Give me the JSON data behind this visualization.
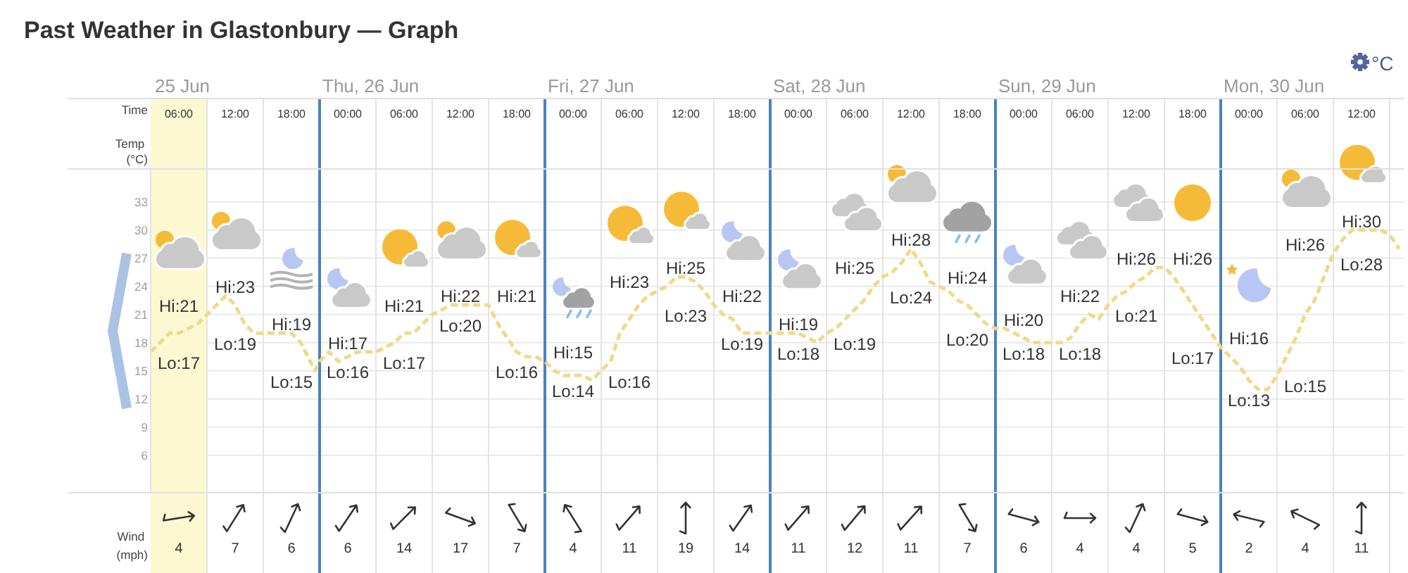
{
  "chart_data": [
    {
      "type": "line",
      "title": "Past Weather in Glastonbury — Graph",
      "xlabel": "Time",
      "ylabel": "Temp (°C)",
      "x": [
        "--06-25T03:00",
        "--06-25T04:00",
        "--06-25T05:00",
        "--06-25T06:00",
        "--06-25T07:00",
        "--06-25T08:00",
        "--06-25T09:00",
        "--06-25T10:00",
        "--06-25T11:00",
        "--06-25T12:00",
        "--06-25T13:00",
        "--06-25T14:00",
        "--06-25T15:00",
        "--06-25T16:00",
        "--06-25T17:00",
        "--06-25T18:00",
        "--06-25T19:00",
        "--06-25T20:00",
        "--06-25T20:30",
        "--06-25T21:00",
        "--06-25T22:00",
        "--06-25T23:00",
        "--06-26T00:00",
        "--06-26T01:00",
        "--06-26T02:00",
        "--06-26T03:00",
        "--06-26T04:00",
        "--06-26T05:00",
        "--06-26T06:00",
        "--06-26T07:00",
        "--06-26T08:00",
        "--06-26T09:00",
        "--06-26T10:00",
        "--06-26T11:00",
        "--06-26T12:00",
        "--06-26T13:00",
        "--06-26T14:00",
        "--06-26T15:00",
        "--06-26T16:00",
        "--06-26T17:00",
        "--06-26T18:00",
        "--06-26T19:00",
        "--06-26T20:00",
        "--06-26T21:00",
        "--06-26T22:00",
        "--06-26T23:00",
        "--06-27T00:00",
        "--06-27T01:00",
        "--06-27T02:00",
        "--06-27T03:00",
        "--06-27T04:00",
        "--06-27T05:00",
        "--06-27T06:00",
        "--06-27T07:00",
        "--06-27T08:00",
        "--06-27T09:00",
        "--06-27T10:00",
        "--06-27T11:00",
        "--06-27T12:00",
        "--06-27T13:00",
        "--06-27T14:00",
        "--06-27T15:00",
        "--06-27T16:00",
        "--06-27T17:00",
        "--06-27T18:00",
        "--06-27T19:00",
        "--06-27T20:00",
        "--06-27T21:00",
        "--06-27T22:00",
        "--06-27T23:00",
        "--06-28T00:00",
        "--06-28T01:00",
        "--06-28T02:00",
        "--06-28T03:00",
        "--06-28T04:00",
        "--06-28T05:00",
        "--06-28T06:00",
        "--06-28T07:00",
        "--06-28T08:00",
        "--06-28T09:00",
        "--06-28T10:00",
        "--06-28T11:00",
        "--06-28T12:00",
        "--06-28T13:00",
        "--06-28T14:00",
        "--06-28T15:00",
        "--06-28T16:00",
        "--06-28T17:00",
        "--06-28T18:00",
        "--06-28T19:00",
        "--06-28T20:00",
        "--06-28T21:00",
        "--06-28T22:00",
        "--06-28T23:00",
        "--06-29T00:00",
        "--06-29T01:00",
        "--06-29T02:00",
        "--06-29T03:00",
        "--06-29T04:00",
        "--06-29T05:00",
        "--06-29T06:00",
        "--06-29T07:00",
        "--06-29T08:00",
        "--06-29T09:00",
        "--06-29T10:00",
        "--06-29T11:00",
        "--06-29T12:00",
        "--06-29T13:00",
        "--06-29T14:00",
        "--06-29T15:00",
        "--06-29T16:00",
        "--06-29T17:00",
        "--06-29T18:00",
        "--06-29T19:00",
        "--06-29T20:00",
        "--06-29T21:00",
        "--06-29T22:00",
        "--06-29T23:00",
        "--06-30T00:00",
        "--06-30T01:00",
        "--06-30T02:00",
        "--06-30T03:00",
        "--06-30T04:00",
        "--06-30T05:00",
        "--06-30T06:00",
        "--06-30T07:00",
        "--06-30T08:00",
        "--06-30T09:00",
        "--06-30T10:00",
        "--06-30T11:00",
        "--06-30T12:00",
        "--06-30T13:00",
        "--06-30T14:00",
        "--06-30T15:00",
        "--06-30T16:00"
      ],
      "series": [
        {
          "color": "#f2d88a",
          "values": [
            17,
            18,
            19,
            19,
            19.5,
            20,
            21,
            22,
            23,
            22,
            20,
            19,
            19,
            19,
            19,
            19,
            18,
            16,
            15,
            16,
            17,
            16,
            16.5,
            17,
            17,
            17,
            17.5,
            18,
            19,
            19,
            20,
            21,
            21.5,
            22,
            22,
            22,
            22,
            22,
            20,
            18.5,
            17,
            16.5,
            16.5,
            16,
            15,
            14.5,
            14.5,
            14.5,
            14,
            15,
            16,
            19,
            20.5,
            22,
            23,
            23.5,
            24,
            25,
            25,
            24.5,
            23.5,
            22,
            21,
            20.5,
            19,
            19,
            19,
            19,
            19,
            19,
            19,
            18.5,
            18,
            19,
            19.5,
            20.5,
            21.5,
            22.5,
            24,
            25,
            25.5,
            26.5,
            28,
            26.5,
            24.5,
            24,
            23.5,
            22.5,
            22,
            21,
            20,
            19.5,
            19.5,
            19,
            18.5,
            18,
            18,
            18,
            18,
            18.5,
            20,
            21,
            20.5,
            22,
            23,
            23.5,
            24.5,
            25,
            26,
            26,
            25,
            23.5,
            22,
            20.5,
            19,
            17.5,
            16.5,
            15.5,
            14,
            13,
            13,
            14.5,
            16.5,
            18.5,
            21,
            22.5,
            25,
            27.5,
            29,
            30,
            30,
            30,
            30,
            29.5,
            28
          ]
        }
      ],
      "line_style": "dashed",
      "xlim": [
        "--06-25T03:00",
        "--06-30T16:30"
      ],
      "xticks": [
        {
          "value": "--06-25T06:00",
          "label": "06:00"
        },
        {
          "value": "--06-25T12:00",
          "label": "12:00"
        },
        {
          "value": "--06-25T18:00",
          "label": "18:00"
        },
        {
          "value": "--06-26T00:00",
          "label": "00:00"
        },
        {
          "value": "--06-26T06:00",
          "label": "06:00"
        },
        {
          "value": "--06-26T12:00",
          "label": "12:00"
        },
        {
          "value": "--06-26T18:00",
          "label": "18:00"
        },
        {
          "value": "--06-27T00:00",
          "label": "00:00"
        },
        {
          "value": "--06-27T06:00",
          "label": "06:00"
        },
        {
          "value": "--06-27T12:00",
          "label": "12:00"
        },
        {
          "value": "--06-27T18:00",
          "label": "18:00"
        },
        {
          "value": "--06-28T00:00",
          "label": "00:00"
        },
        {
          "value": "--06-28T06:00",
          "label": "06:00"
        },
        {
          "value": "--06-28T12:00",
          "label": "12:00"
        },
        {
          "value": "--06-28T18:00",
          "label": "18:00"
        },
        {
          "value": "--06-29T00:00",
          "label": "00:00"
        },
        {
          "value": "--06-29T06:00",
          "label": "06:00"
        },
        {
          "value": "--06-29T12:00",
          "label": "12:00"
        },
        {
          "value": "--06-29T18:00",
          "label": "18:00"
        },
        {
          "value": "--06-30T00:00",
          "label": "00:00"
        },
        {
          "value": "--06-30T06:00",
          "label": "06:00"
        },
        {
          "value": "--06-30T12:00",
          "label": "12:00"
        }
      ],
      "ylim": [
        2,
        36.5
      ],
      "yticks": [
        6,
        9,
        12,
        15,
        18,
        21,
        24,
        27,
        30,
        33
      ],
      "grid": "y",
      "ref_lines": [
        {
          "axis": "x",
          "value": "--06-25T09:00",
          "color": "#e4e4e4"
        },
        {
          "axis": "x",
          "value": "--06-25T15:00",
          "color": "#e4e4e4"
        },
        {
          "axis": "x",
          "value": "--06-26T03:00",
          "color": "#e4e4e4"
        },
        {
          "axis": "x",
          "value": "--06-26T09:00",
          "color": "#e4e4e4"
        },
        {
          "axis": "x",
          "value": "--06-26T15:00",
          "color": "#e4e4e4"
        },
        {
          "axis": "x",
          "value": "--06-27T03:00",
          "color": "#e4e4e4"
        },
        {
          "axis": "x",
          "value": "--06-27T09:00",
          "color": "#e4e4e4"
        },
        {
          "axis": "x",
          "value": "--06-27T15:00",
          "color": "#e4e4e4"
        },
        {
          "axis": "x",
          "value": "--06-28T03:00",
          "color": "#e4e4e4"
        },
        {
          "axis": "x",
          "value": "--06-28T09:00",
          "color": "#e4e4e4"
        },
        {
          "axis": "x",
          "value": "--06-28T15:00",
          "color": "#e4e4e4"
        },
        {
          "axis": "x",
          "value": "--06-29T03:00",
          "color": "#e4e4e4"
        },
        {
          "axis": "x",
          "value": "--06-29T09:00",
          "color": "#e4e4e4"
        },
        {
          "axis": "x",
          "value": "--06-29T15:00",
          "color": "#e4e4e4"
        },
        {
          "axis": "x",
          "value": "--06-30T03:00",
          "color": "#e4e4e4"
        },
        {
          "axis": "x",
          "value": "--06-30T09:00",
          "color": "#e4e4e4"
        },
        {
          "axis": "x",
          "value": "--06-30T15:00",
          "color": "#e4e4e4"
        },
        {
          "axis": "x",
          "value": "--06-25T21:00",
          "label": "Thu, 26 Jun",
          "color": "#4a82be"
        },
        {
          "axis": "x",
          "value": "--06-26T21:00",
          "label": "Fri, 27 Jun",
          "color": "#4a82be"
        },
        {
          "axis": "x",
          "value": "--06-27T21:00",
          "label": "Sat, 28 Jun",
          "color": "#4a82be"
        },
        {
          "axis": "x",
          "value": "--06-28T21:00",
          "label": "Sun, 29 Jun",
          "color": "#4a82be"
        },
        {
          "axis": "x",
          "value": "--06-29T21:00",
          "label": "Mon, 30 Jun",
          "color": "#4a82be"
        }
      ],
      "bands": [
        {
          "axis": "x",
          "from": "--06-25T03:00",
          "to": "--06-25T09:00",
          "color": "#fcf9d2"
        }
      ],
      "annotations": [
        "25 Jun",
        "°C",
        "Hi:21",
        "Lo:17",
        "Hi:23",
        "Lo:19",
        "Hi:19",
        "Lo:15",
        "Hi:17",
        "Lo:16",
        "Hi:21",
        "Lo:17",
        "Hi:22",
        "Lo:20",
        "Hi:21",
        "Lo:16",
        "Hi:15",
        "Lo:14",
        "Hi:23",
        "Lo:16",
        "Hi:25",
        "Lo:23",
        "Hi:22",
        "Lo:19",
        "Hi:19",
        "Lo:18",
        "Hi:25",
        "Lo:19",
        "Hi:28",
        "Lo:24",
        "Hi:24",
        "Lo:20",
        "Hi:20",
        "Lo:18",
        "Hi:22",
        "Lo:18",
        "Hi:26",
        "Lo:21",
        "Hi:26",
        "Lo:17",
        "Hi:16",
        "Lo:13",
        "Hi:26",
        "Lo:15",
        "Hi:30",
        "Lo:28"
      ]
    },
    {
      "type": "other",
      "ylabel": "Wind (mph)",
      "categories": [
        null,
        null,
        null,
        null,
        null,
        null,
        null,
        null,
        null,
        null,
        null,
        null,
        null,
        null,
        null,
        null,
        null,
        null,
        null,
        null,
        null,
        null
      ],
      "values": [
        4,
        7,
        6,
        6,
        14,
        17,
        7,
        4,
        11,
        19,
        14,
        11,
        12,
        11,
        7,
        6,
        4,
        4,
        5,
        2,
        4,
        11
      ],
      "data_labels": true
    }
  ]
}
